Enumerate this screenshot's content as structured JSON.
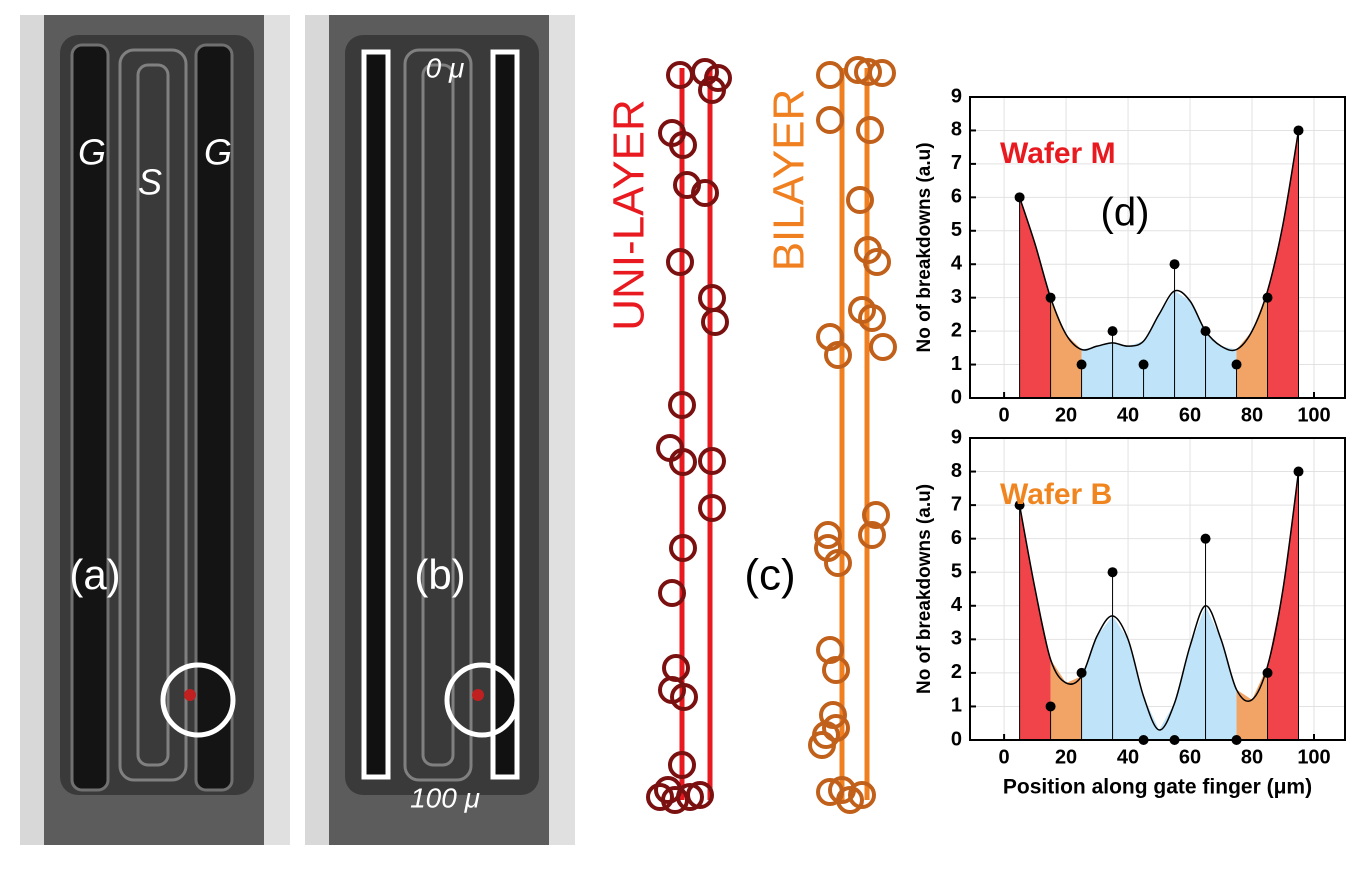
{
  "panels": {
    "a": {
      "labels": [
        "G",
        "S",
        "G"
      ],
      "tag": "(a)"
    },
    "b": {
      "tag": "(b)",
      "top": "0 μ",
      "bottom": "100 μ"
    },
    "c": {
      "tag": "(c)",
      "uni": "UNI-LAYER",
      "bi": "BILAYER"
    }
  },
  "chart_data": [
    {
      "type": "stem",
      "title": "Wafer M",
      "title_color": "#e8191f",
      "annotation": "(d)",
      "y_label": "No of breakdowns (a.u)",
      "x": [
        5,
        15,
        25,
        35,
        45,
        55,
        65,
        75,
        85,
        95
      ],
      "values": [
        6,
        3,
        1,
        2,
        1,
        4,
        2,
        1,
        3,
        8
      ],
      "color": "#000000",
      "fit": {
        "x": [
          5,
          10,
          15,
          20,
          25,
          30,
          35,
          40,
          45,
          50,
          55,
          60,
          65,
          70,
          75,
          80,
          85,
          90,
          95
        ],
        "values": [
          6,
          4.6,
          3,
          1.9,
          1.45,
          1.55,
          1.65,
          1.55,
          1.7,
          2.5,
          3.2,
          2.9,
          2,
          1.55,
          1.45,
          2,
          3.2,
          5.2,
          8
        ]
      },
      "regions": [
        {
          "from": 5,
          "to": 15,
          "color": "#f0434a"
        },
        {
          "from": 15,
          "to": 25,
          "color": "#f2a466"
        },
        {
          "from": 25,
          "to": 75,
          "color": "#bfe3f8"
        },
        {
          "from": 75,
          "to": 85,
          "color": "#f2a466"
        },
        {
          "from": 85,
          "to": 95,
          "color": "#f0434a"
        }
      ],
      "xlim": [
        -11,
        110
      ],
      "ylim": [
        0,
        9
      ],
      "xticks": [
        0,
        20,
        40,
        60,
        80,
        100
      ],
      "yticks": [
        0,
        1,
        2,
        3,
        4,
        5,
        6,
        7,
        8,
        9
      ],
      "grid": true
    },
    {
      "type": "stem",
      "title": "Wafer B",
      "title_color": "#f0851f",
      "y_label": "No of breakdowns (a.u)",
      "x_label": "Position along gate finger (μm)",
      "x": [
        5,
        15,
        25,
        35,
        45,
        55,
        65,
        75,
        85,
        95
      ],
      "values": [
        7,
        1,
        2,
        5,
        0,
        0,
        6,
        0,
        2,
        8
      ],
      "color": "#000000",
      "fit": {
        "x": [
          5,
          10,
          15,
          20,
          25,
          30,
          35,
          40,
          45,
          50,
          55,
          60,
          65,
          70,
          75,
          80,
          85,
          90,
          95
        ],
        "values": [
          7,
          4.5,
          2.4,
          1.7,
          1.9,
          3.1,
          3.7,
          3,
          1.3,
          0.3,
          1.1,
          2.8,
          4,
          3,
          1.5,
          1.2,
          2.2,
          4.5,
          8
        ]
      },
      "regions": [
        {
          "from": 5,
          "to": 15,
          "color": "#f0434a"
        },
        {
          "from": 15,
          "to": 25,
          "color": "#f2a466"
        },
        {
          "from": 25,
          "to": 75,
          "color": "#bfe3f8"
        },
        {
          "from": 75,
          "to": 85,
          "color": "#f2a466"
        },
        {
          "from": 85,
          "to": 95,
          "color": "#f0434a"
        }
      ],
      "xlim": [
        -11,
        110
      ],
      "ylim": [
        0,
        9
      ],
      "xticks": [
        0,
        20,
        40,
        60,
        80,
        100
      ],
      "yticks": [
        0,
        1,
        2,
        3,
        4,
        5,
        6,
        7,
        8,
        9
      ],
      "grid": true
    }
  ]
}
